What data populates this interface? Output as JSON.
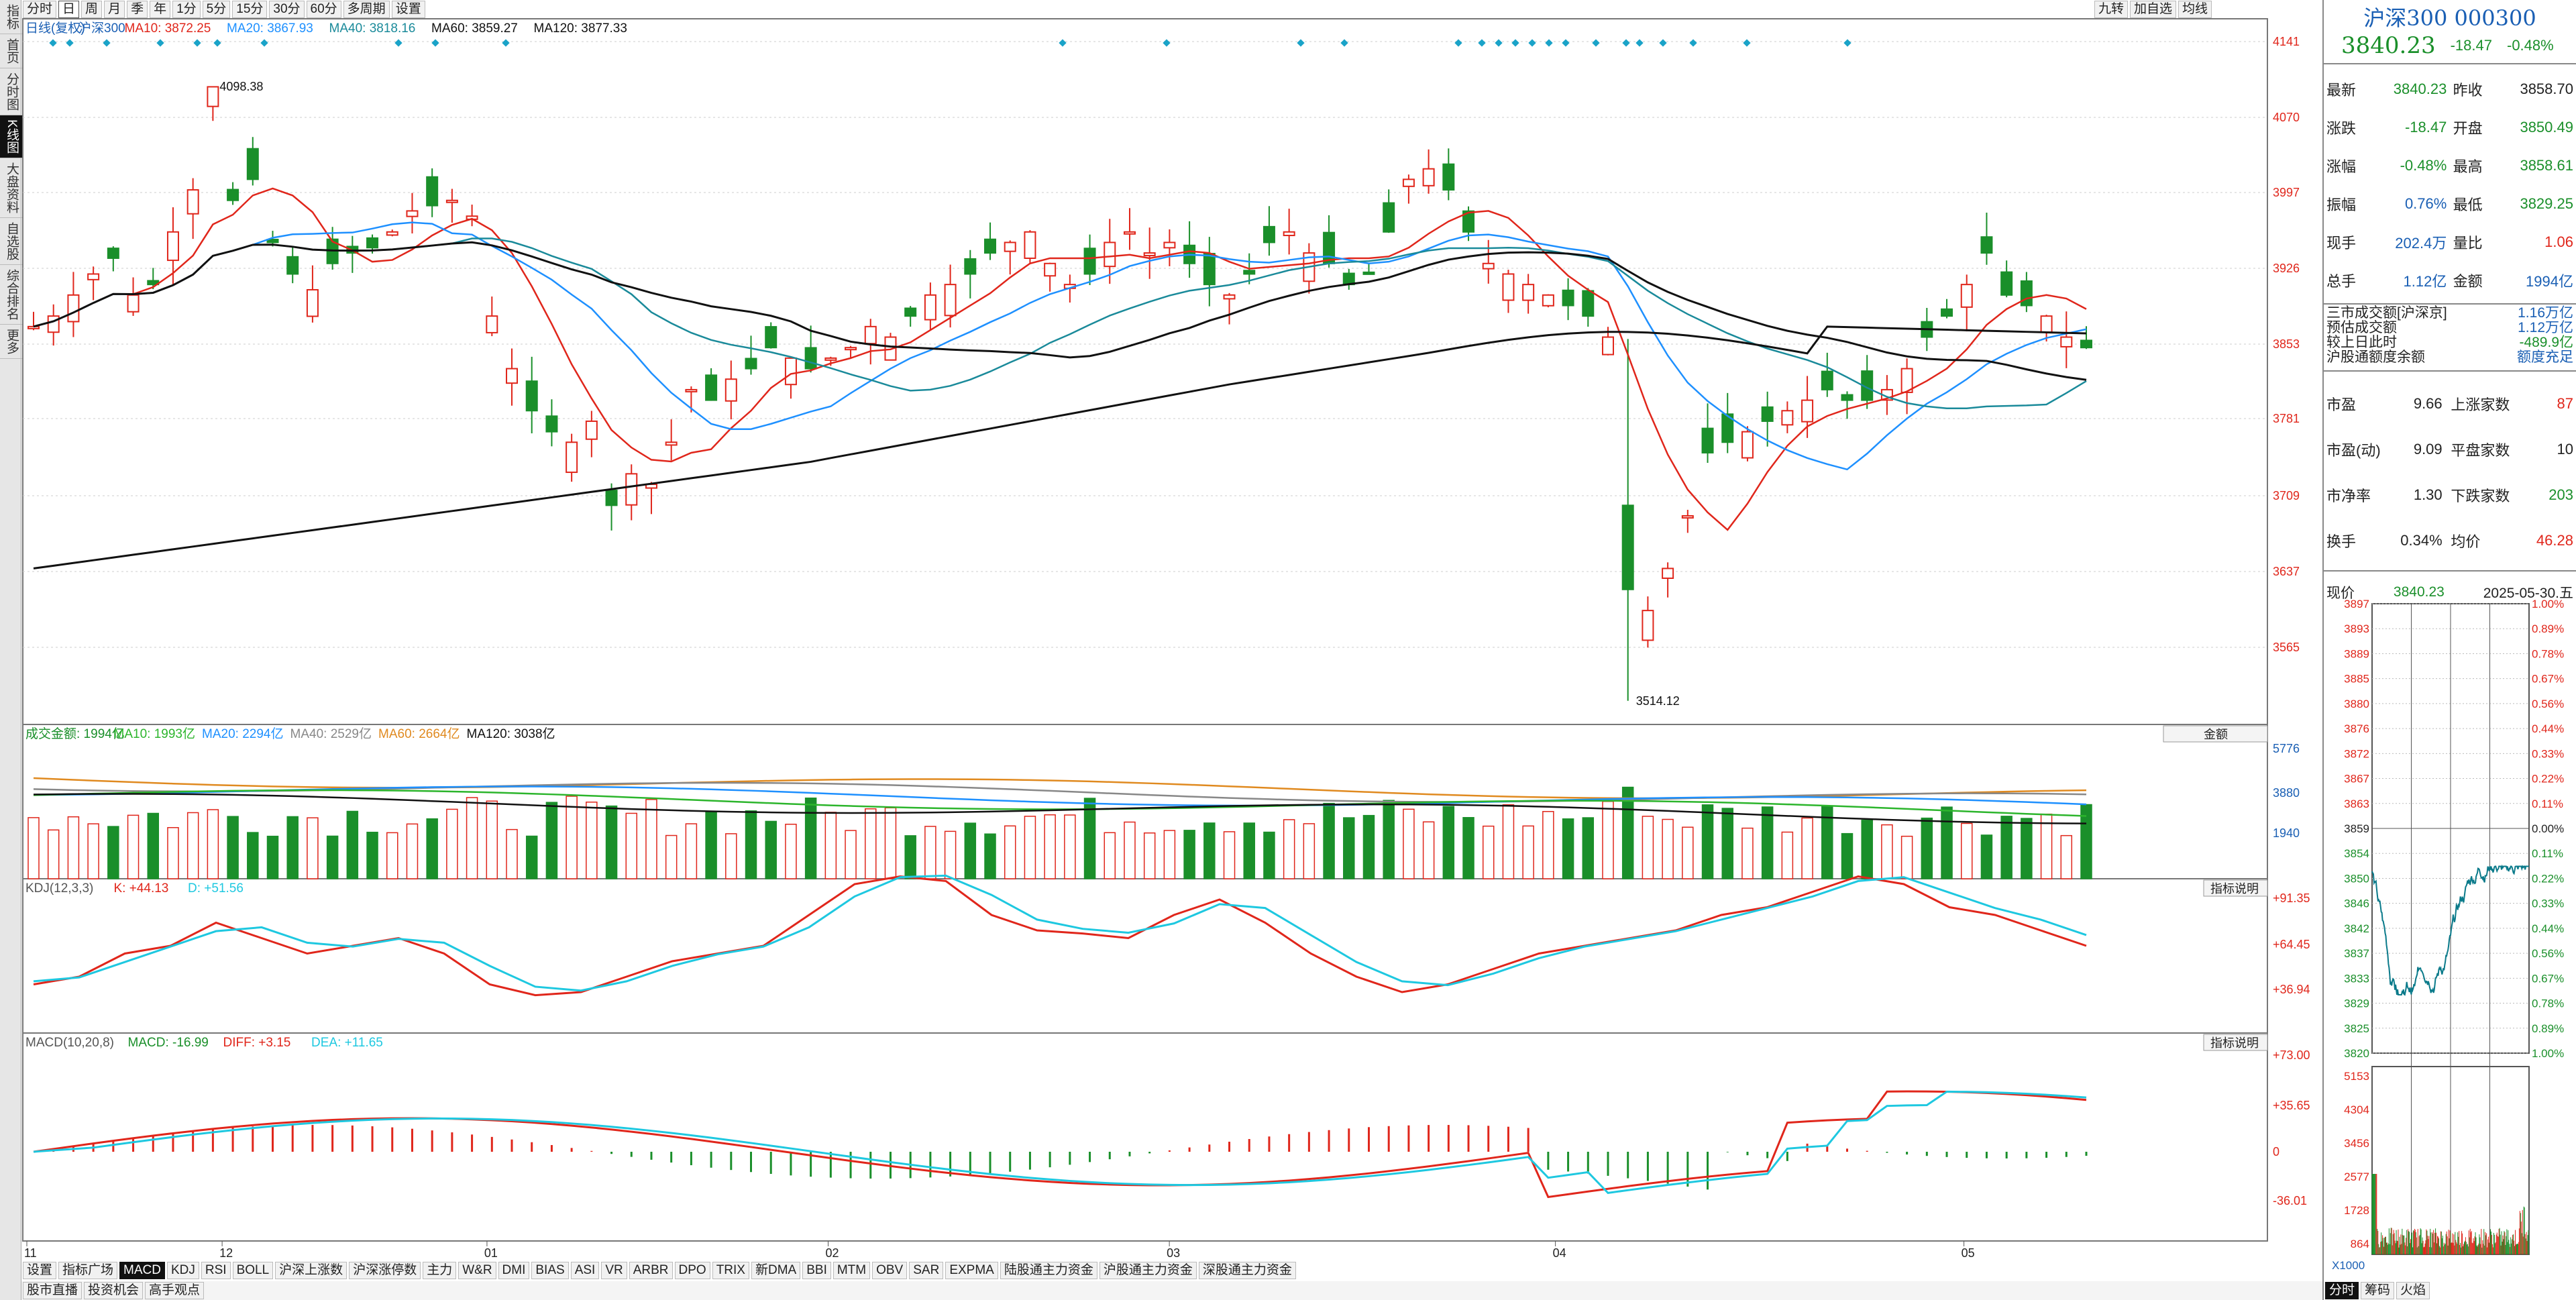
{
  "left_nav": [
    "指标",
    "首页",
    "分时图",
    "K线图",
    "大盘资料",
    "自选股",
    "综合排名",
    "更多"
  ],
  "period_tabs": [
    "分时",
    "日",
    "周",
    "月",
    "季",
    "年",
    "1分",
    "5分",
    "15分",
    "30分",
    "60分",
    "多周期",
    "设置"
  ],
  "top_right_btns": [
    "九转",
    "加自选",
    "均线"
  ],
  "main": {
    "legend": [
      {
        "t": "日线(复权)",
        "c": "#1a5fb4"
      },
      {
        "t": "沪深300",
        "c": "#1a5fb4"
      },
      {
        "t": "MA10: 3872.25",
        "c": "#e0261b"
      },
      {
        "t": "MA20: 3867.93",
        "c": "#1e90ff"
      },
      {
        "t": "MA40: 3818.16",
        "c": "#1a8a9a"
      },
      {
        "t": "MA60: 3859.27",
        "c": "#111"
      },
      {
        "t": "MA120: 3877.33",
        "c": "#111"
      }
    ],
    "y_ticks": [
      "4141",
      "4070",
      "3997",
      "3926",
      "3853",
      "3781",
      "3709",
      "3637",
      "3565"
    ],
    "hi_label": "4098.38",
    "lo_label": "3514.12"
  },
  "vol": {
    "legend": [
      {
        "t": "成交金额: 1994亿",
        "c": "#1a8f2a"
      },
      {
        "t": "MA10: 1993亿",
        "c": "#2cb52c"
      },
      {
        "t": "MA20: 2294亿",
        "c": "#1e90ff"
      },
      {
        "t": "MA40: 2529亿",
        "c": "#888"
      },
      {
        "t": "MA60: 2664亿",
        "c": "#e08a20"
      },
      {
        "t": "MA120: 3038亿",
        "c": "#111"
      }
    ],
    "y_ticks": [
      "5776",
      "3880",
      "1940"
    ],
    "selector": "金额"
  },
  "kdj": {
    "legend": [
      {
        "t": "KDJ(12,3,3)",
        "c": "#555"
      },
      {
        "t": "K: +44.13",
        "c": "#e0261b"
      },
      {
        "t": "D: +51.56",
        "c": "#1ec8e0"
      }
    ],
    "y_ticks": [
      "+91.35",
      "+64.45",
      "+36.94"
    ],
    "help": "指标说明"
  },
  "macd": {
    "legend": [
      {
        "t": "MACD(10,20,8)",
        "c": "#555"
      },
      {
        "t": "MACD: -16.99",
        "c": "#1a8f2a"
      },
      {
        "t": "DIFF: +3.15",
        "c": "#e0261b"
      },
      {
        "t": "DEA: +11.65",
        "c": "#1ec8e0"
      }
    ],
    "y_ticks": [
      "+73.00",
      "+35.65",
      "0",
      "-36.01"
    ],
    "help": "指标说明"
  },
  "x_labels": [
    {
      "t": "11",
      "p": 0.0
    },
    {
      "t": "12",
      "p": 0.087
    },
    {
      "t": "01",
      "p": 0.205
    },
    {
      "t": "02",
      "p": 0.357
    },
    {
      "t": "03",
      "p": 0.509
    },
    {
      "t": "04",
      "p": 0.681
    },
    {
      "t": "05",
      "p": 0.863
    }
  ],
  "indicator_tabs": [
    "设置",
    "指标广场",
    "MACD",
    "KDJ",
    "RSI",
    "BOLL",
    "沪深上涨数",
    "沪深涨停数",
    "主力",
    "W&R",
    "DMI",
    "BIAS",
    "ASI",
    "VR",
    "ARBR",
    "DPO",
    "TRIX",
    "新DMA",
    "BBI",
    "MTM",
    "OBV",
    "SAR",
    "EXPMA",
    "陆股通主力资金",
    "沪股通主力资金",
    "深股通主力资金"
  ],
  "bottom_tabs": [
    "股市直播",
    "投资机会",
    "高手观点"
  ],
  "quote": {
    "title": "沪深300 000300",
    "price": "3840.23",
    "change": "-18.47",
    "pct": "-0.48%",
    "rows": [
      [
        "最新",
        "3840.23",
        "dn",
        "昨收",
        "3858.70",
        "k"
      ],
      [
        "涨跌",
        "-18.47",
        "dn",
        "开盘",
        "3850.49",
        "dn"
      ],
      [
        "涨幅",
        "-0.48%",
        "dn",
        "最高",
        "3858.61",
        "dn"
      ],
      [
        "振幅",
        "0.76%",
        "bl",
        "最低",
        "3829.25",
        "dn"
      ],
      [
        "现手",
        "202.4万",
        "bl",
        "量比",
        "1.06",
        "up"
      ],
      [
        "总手",
        "1.12亿",
        "bl",
        "金额",
        "1994亿",
        "bl"
      ]
    ],
    "turnover": [
      [
        "三市成交额[沪深京]",
        "1.16万亿"
      ],
      [
        "预估成交额",
        "1.12万亿"
      ],
      [
        "较上日此时",
        "-489.9亿"
      ],
      [
        "沪股通额度余额",
        "额度充足"
      ]
    ],
    "stats": [
      [
        "市盈",
        "9.66",
        "上涨家数",
        "87",
        "up"
      ],
      [
        "市盈(动)",
        "9.09",
        "平盘家数",
        "10",
        "k"
      ],
      [
        "市净率",
        "1.30",
        "下跌家数",
        "203",
        "dn"
      ],
      [
        "换手",
        "0.34%",
        "均价",
        "46.28",
        "up"
      ]
    ],
    "now_label": "现价",
    "now_val": "3840.23",
    "date": "2025-05-30.五",
    "mini_left": [
      "3897",
      "3893",
      "3889",
      "3885",
      "3880",
      "3876",
      "3872",
      "3867",
      "3863",
      "3859",
      "3854",
      "3850",
      "3846",
      "3842",
      "3837",
      "3833",
      "3829",
      "3825",
      "3820"
    ],
    "mini_right": [
      "1.00%",
      "0.89%",
      "0.78%",
      "0.67%",
      "0.56%",
      "0.44%",
      "0.33%",
      "0.22%",
      "0.11%",
      "0.00%",
      "0.11%",
      "0.22%",
      "0.33%",
      "0.44%",
      "0.56%",
      "0.67%",
      "0.78%",
      "0.89%",
      "1.00%"
    ],
    "mini_vol": [
      "5153",
      "4304",
      "3456",
      "2577",
      "1728",
      "864"
    ],
    "zoom": "X1000",
    "foot": [
      "分时",
      "筹码",
      "火焰"
    ]
  }
}
